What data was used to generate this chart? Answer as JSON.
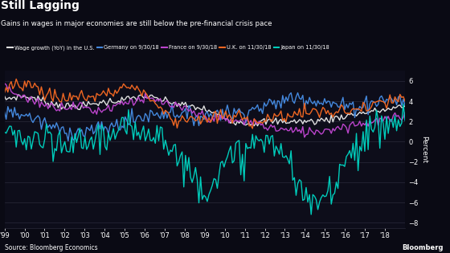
{
  "title": "Still Lagging",
  "subtitle": "Gains in wages in major economies are still below the pre-financial crisis pace",
  "source": "Source: Bloomberg Economics",
  "branding": "Bloomberg",
  "ylabel": "Percent",
  "ylim": [
    -8.5,
    7.0
  ],
  "yticks": [
    -8,
    -6,
    -4,
    -2,
    0,
    2,
    4,
    6
  ],
  "background_color": "#0a0a14",
  "plot_bg_color": "#0d0d1a",
  "text_color": "#ffffff",
  "grid_color": "#2a2a3a",
  "series": [
    {
      "label": "Wage growth (YoY) in the U.S.",
      "color": "#e0e0e0",
      "lw": 1.0
    },
    {
      "label": "Germany on 9/30/18",
      "color": "#4488dd",
      "lw": 1.0
    },
    {
      "label": "France on 9/30/18",
      "color": "#bb44cc",
      "lw": 1.0
    },
    {
      "label": "U.K. on 11/30/18",
      "color": "#ee6622",
      "lw": 1.0
    },
    {
      "label": "Japan on 11/30/18",
      "color": "#00ccbb",
      "lw": 1.0
    }
  ],
  "xstart": 1999.0,
  "xend": 2019.0,
  "xtick_labels": [
    "'99",
    "'00",
    "'01",
    "'02",
    "'03",
    "'04",
    "'05",
    "'06",
    "'07",
    "'08",
    "'09",
    "'10",
    "'11",
    "'12",
    "'13",
    "'14",
    "'15",
    "'16",
    "'17",
    "'18"
  ],
  "xtick_positions": [
    1999,
    2000,
    2001,
    2002,
    2003,
    2004,
    2005,
    2006,
    2007,
    2008,
    2009,
    2010,
    2011,
    2012,
    2013,
    2014,
    2015,
    2016,
    2017,
    2018
  ]
}
